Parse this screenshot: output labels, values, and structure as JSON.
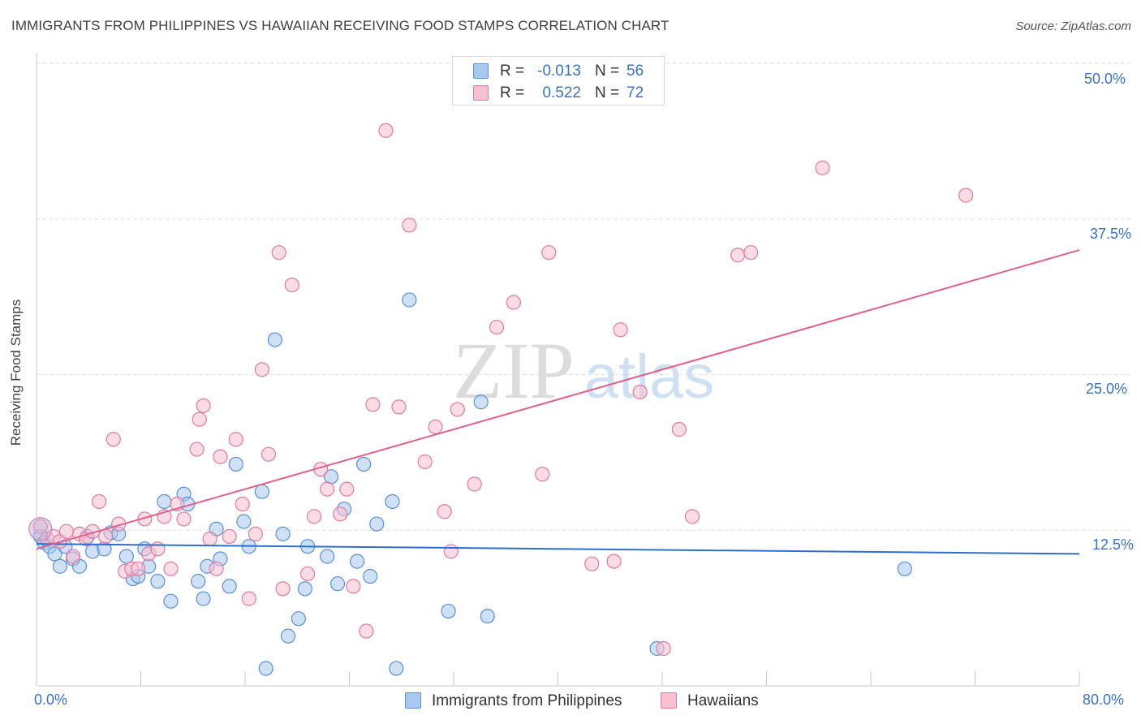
{
  "header": {
    "title": "IMMIGRANTS FROM PHILIPPINES VS HAWAIIAN RECEIVING FOOD STAMPS CORRELATION CHART",
    "source": "Source: ZipAtlas.com"
  },
  "legend": {
    "rows": [
      {
        "r_label": "R =",
        "r_value": "-0.013",
        "n_label": "N =",
        "n_value": "56",
        "color": "#a8c8f0",
        "stroke": "#5b8fd6"
      },
      {
        "r_label": "R =",
        "r_value": "0.522",
        "n_label": "N =",
        "n_value": "72",
        "color": "#f8c0d0",
        "stroke": "#e07aa0"
      }
    ]
  },
  "watermark": {
    "zip": "ZIP",
    "atlas": "atlas"
  },
  "colors": {
    "blue_fill": "#a8c8f0",
    "blue_stroke": "#5b8fd6",
    "blue_line": "#2f6fcc",
    "pink_fill": "#f8c0d0",
    "pink_stroke": "#e07aa0",
    "pink_line": "#e0608c",
    "axis_text": "#3a72c4",
    "grid": "#dddddd"
  },
  "chart_data": {
    "type": "scatter",
    "title": "IMMIGRANTS FROM PHILIPPINES VS HAWAIIAN RECEIVING FOOD STAMPS CORRELATION CHART",
    "xlabel": "",
    "ylabel": "Receiving Food Stamps",
    "xlim": [
      0,
      80
    ],
    "ylim": [
      0,
      50
    ],
    "x_tick_labels": [
      "0.0%",
      "80.0%"
    ],
    "y_ticks": [
      12.5,
      25.0,
      37.5,
      50.0
    ],
    "y_tick_labels": [
      "12.5%",
      "25.0%",
      "37.5%",
      "50.0%"
    ],
    "grid": true,
    "legend_position": "bottom-center",
    "series": [
      {
        "name": "Immigrants from Philippines",
        "color": "#a8c8f0",
        "trend": {
          "x": [
            0,
            80
          ],
          "y": [
            11.4,
            10.6
          ]
        },
        "points": [
          [
            0.3,
            12.0
          ],
          [
            0.6,
            11.5
          ],
          [
            1.0,
            11.2
          ],
          [
            1.4,
            10.6
          ],
          [
            1.8,
            9.6
          ],
          [
            2.2,
            11.2
          ],
          [
            2.8,
            10.2
          ],
          [
            3.3,
            9.6
          ],
          [
            3.9,
            12.0
          ],
          [
            4.3,
            10.8
          ],
          [
            5.2,
            11.0
          ],
          [
            5.7,
            12.3
          ],
          [
            6.3,
            12.2
          ],
          [
            6.9,
            10.4
          ],
          [
            7.4,
            8.6
          ],
          [
            7.8,
            8.8
          ],
          [
            8.3,
            11.0
          ],
          [
            8.6,
            9.6
          ],
          [
            9.3,
            8.4
          ],
          [
            9.8,
            14.8
          ],
          [
            10.3,
            6.8
          ],
          [
            11.3,
            15.4
          ],
          [
            11.6,
            14.6
          ],
          [
            12.4,
            8.4
          ],
          [
            12.8,
            7.0
          ],
          [
            13.1,
            9.6
          ],
          [
            13.8,
            12.6
          ],
          [
            14.1,
            10.2
          ],
          [
            14.8,
            8.0
          ],
          [
            15.3,
            17.8
          ],
          [
            15.9,
            13.2
          ],
          [
            16.3,
            11.2
          ],
          [
            17.3,
            15.6
          ],
          [
            17.6,
            1.4
          ],
          [
            18.3,
            27.8
          ],
          [
            18.9,
            12.2
          ],
          [
            19.3,
            4.0
          ],
          [
            20.1,
            5.4
          ],
          [
            20.6,
            7.8
          ],
          [
            20.8,
            11.2
          ],
          [
            22.3,
            10.4
          ],
          [
            22.6,
            16.8
          ],
          [
            23.1,
            8.2
          ],
          [
            23.6,
            14.2
          ],
          [
            24.6,
            10.0
          ],
          [
            25.1,
            17.8
          ],
          [
            25.6,
            8.8
          ],
          [
            26.1,
            13.0
          ],
          [
            27.3,
            14.8
          ],
          [
            27.6,
            1.4
          ],
          [
            28.6,
            31.0
          ],
          [
            31.6,
            6.0
          ],
          [
            34.1,
            22.8
          ],
          [
            34.6,
            5.6
          ],
          [
            47.6,
            3.0
          ],
          [
            66.6,
            9.4
          ]
        ]
      },
      {
        "name": "Hawaiians",
        "color": "#f8c0d0",
        "trend": {
          "x": [
            0,
            80
          ],
          "y": [
            11.0,
            35.0
          ]
        },
        "points": [
          [
            0.3,
            12.8
          ],
          [
            0.8,
            11.8
          ],
          [
            1.3,
            12.0
          ],
          [
            1.8,
            11.6
          ],
          [
            2.3,
            12.4
          ],
          [
            2.8,
            10.4
          ],
          [
            3.3,
            12.2
          ],
          [
            3.8,
            11.8
          ],
          [
            4.3,
            12.4
          ],
          [
            4.8,
            14.8
          ],
          [
            5.3,
            12.0
          ],
          [
            5.9,
            19.8
          ],
          [
            6.3,
            13.0
          ],
          [
            6.8,
            9.2
          ],
          [
            7.3,
            9.4
          ],
          [
            7.8,
            9.4
          ],
          [
            8.3,
            13.4
          ],
          [
            8.6,
            10.6
          ],
          [
            9.3,
            11.0
          ],
          [
            9.8,
            13.6
          ],
          [
            10.3,
            9.4
          ],
          [
            10.8,
            14.6
          ],
          [
            11.3,
            13.4
          ],
          [
            12.3,
            19.0
          ],
          [
            12.5,
            21.4
          ],
          [
            12.8,
            22.5
          ],
          [
            13.3,
            11.8
          ],
          [
            13.8,
            9.4
          ],
          [
            14.1,
            18.4
          ],
          [
            14.8,
            12.0
          ],
          [
            15.3,
            19.8
          ],
          [
            15.8,
            14.6
          ],
          [
            16.3,
            7.0
          ],
          [
            16.8,
            12.2
          ],
          [
            17.3,
            25.4
          ],
          [
            17.8,
            18.6
          ],
          [
            18.6,
            34.8
          ],
          [
            18.9,
            7.8
          ],
          [
            19.6,
            32.2
          ],
          [
            20.8,
            9.0
          ],
          [
            21.3,
            13.6
          ],
          [
            21.8,
            17.4
          ],
          [
            22.3,
            15.8
          ],
          [
            23.3,
            13.8
          ],
          [
            23.8,
            15.8
          ],
          [
            24.3,
            8.0
          ],
          [
            25.3,
            4.4
          ],
          [
            25.8,
            22.6
          ],
          [
            26.8,
            44.6
          ],
          [
            27.8,
            22.4
          ],
          [
            28.6,
            37.0
          ],
          [
            29.8,
            18.0
          ],
          [
            30.6,
            20.8
          ],
          [
            31.3,
            14.0
          ],
          [
            31.8,
            10.8
          ],
          [
            32.3,
            22.2
          ],
          [
            33.6,
            16.2
          ],
          [
            35.3,
            28.8
          ],
          [
            36.6,
            30.8
          ],
          [
            38.8,
            17.0
          ],
          [
            39.3,
            34.8
          ],
          [
            42.6,
            9.8
          ],
          [
            44.3,
            10.0
          ],
          [
            44.8,
            28.6
          ],
          [
            46.3,
            23.6
          ],
          [
            48.1,
            3.0
          ],
          [
            49.3,
            20.6
          ],
          [
            50.3,
            13.6
          ],
          [
            53.8,
            34.6
          ],
          [
            54.8,
            34.8
          ],
          [
            60.3,
            41.6
          ],
          [
            71.3,
            39.4
          ]
        ]
      }
    ]
  }
}
